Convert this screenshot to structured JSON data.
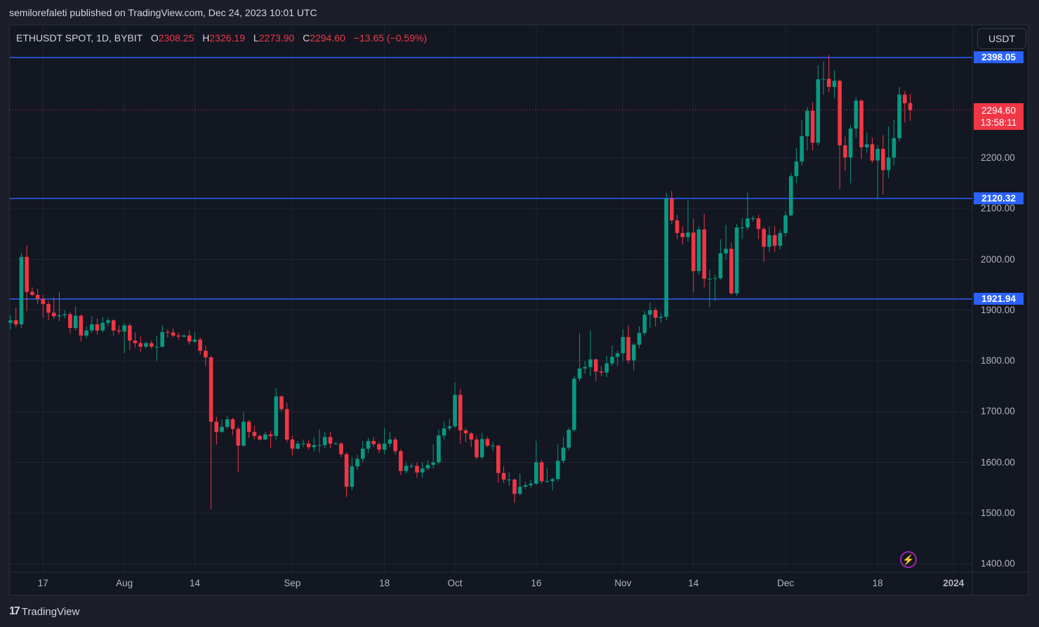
{
  "publish_line": "semilorefaleti published on TradingView.com, Dec 24, 2023 10:01 UTC",
  "legend": {
    "symbol": "ETHUSDT SPOT, 1D, BYBIT",
    "o_label": "O",
    "o": "2308.25",
    "h_label": "H",
    "h": "2326.19",
    "l_label": "L",
    "l": "2273.90",
    "c_label": "C",
    "c": "2294.60",
    "change": "−13.65 (−0.59%)"
  },
  "currency_button": "USDT",
  "levels": [
    {
      "label": "2398.05",
      "value": 2398.05
    },
    {
      "label": "2120.32",
      "value": 2120.32
    },
    {
      "label": "1921.94",
      "value": 1921.94
    }
  ],
  "last_price": {
    "label": "2294.60",
    "value": 2294.6,
    "countdown": "13:58:11"
  },
  "colors": {
    "up": "#089981",
    "down": "#f23645",
    "level": "#2962ff",
    "background": "#131722"
  },
  "brand": "TradingView",
  "icons": {
    "logo": "tradingview-logo-icon",
    "bolt": "lightning-icon"
  },
  "chart_data": {
    "type": "candlestick",
    "title": "ETHUSDT SPOT, 1D, BYBIT",
    "interval": "1D",
    "start_date": "2023-07-11",
    "ylabel": "USDT",
    "ylim": [
      1370,
      2470
    ],
    "grid": true,
    "y_ticks": [
      "1400.00",
      "1500.00",
      "1600.00",
      "1700.00",
      "1800.00",
      "1900.00",
      "2000.00",
      "2100.00",
      "2200.00"
    ],
    "y_tick_values": [
      1400,
      1500,
      1600,
      1700,
      1800,
      1900,
      2000,
      2100,
      2200
    ],
    "x_ticks": [
      {
        "label": "17",
        "date": "2023-07-17"
      },
      {
        "label": "Aug",
        "date": "2023-08-01"
      },
      {
        "label": "14",
        "date": "2023-08-14"
      },
      {
        "label": "Sep",
        "date": "2023-09-01"
      },
      {
        "label": "18",
        "date": "2023-09-18"
      },
      {
        "label": "Oct",
        "date": "2023-10-01"
      },
      {
        "label": "16",
        "date": "2023-10-16"
      },
      {
        "label": "Nov",
        "date": "2023-11-01"
      },
      {
        "label": "14",
        "date": "2023-11-14"
      },
      {
        "label": "Dec",
        "date": "2023-12-01"
      },
      {
        "label": "18",
        "date": "2023-12-18"
      },
      {
        "label": "2024",
        "date": "2024-01-01"
      }
    ],
    "ohlc_fields": [
      "open",
      "high",
      "low",
      "close"
    ],
    "ohlc": [
      [
        1875,
        1890,
        1862,
        1880
      ],
      [
        1880,
        1905,
        1866,
        1872
      ],
      [
        1872,
        2013,
        1864,
        2005
      ],
      [
        2005,
        2028,
        1898,
        1936
      ],
      [
        1936,
        1945,
        1928,
        1930
      ],
      [
        1930,
        1942,
        1912,
        1922
      ],
      [
        1922,
        1930,
        1885,
        1912
      ],
      [
        1912,
        1918,
        1880,
        1895
      ],
      [
        1895,
        1925,
        1882,
        1888
      ],
      [
        1888,
        1935,
        1878,
        1890
      ],
      [
        1890,
        1900,
        1884,
        1892
      ],
      [
        1892,
        1896,
        1855,
        1865
      ],
      [
        1865,
        1907,
        1860,
        1889
      ],
      [
        1889,
        1892,
        1838,
        1850
      ],
      [
        1850,
        1868,
        1845,
        1860
      ],
      [
        1860,
        1888,
        1855,
        1872
      ],
      [
        1872,
        1884,
        1852,
        1860
      ],
      [
        1860,
        1886,
        1856,
        1875
      ],
      [
        1875,
        1885,
        1868,
        1880
      ],
      [
        1880,
        1882,
        1850,
        1860
      ],
      [
        1860,
        1870,
        1852,
        1858
      ],
      [
        1858,
        1875,
        1815,
        1870
      ],
      [
        1870,
        1874,
        1822,
        1840
      ],
      [
        1840,
        1856,
        1826,
        1835
      ],
      [
        1835,
        1848,
        1818,
        1828
      ],
      [
        1828,
        1838,
        1825,
        1835
      ],
      [
        1835,
        1840,
        1824,
        1828
      ],
      [
        1828,
        1850,
        1800,
        1828
      ],
      [
        1828,
        1870,
        1826,
        1857
      ],
      [
        1857,
        1862,
        1846,
        1856
      ],
      [
        1856,
        1864,
        1846,
        1850
      ],
      [
        1850,
        1856,
        1842,
        1848
      ],
      [
        1848,
        1852,
        1846,
        1850
      ],
      [
        1850,
        1860,
        1832,
        1838
      ],
      [
        1838,
        1856,
        1836,
        1842
      ],
      [
        1842,
        1846,
        1812,
        1820
      ],
      [
        1820,
        1830,
        1790,
        1807
      ],
      [
        1807,
        1810,
        1508,
        1680
      ],
      [
        1680,
        1690,
        1635,
        1660
      ],
      [
        1660,
        1684,
        1658,
        1670
      ],
      [
        1670,
        1692,
        1666,
        1685
      ],
      [
        1685,
        1688,
        1654,
        1666
      ],
      [
        1666,
        1670,
        1580,
        1633
      ],
      [
        1633,
        1700,
        1630,
        1680
      ],
      [
        1680,
        1684,
        1648,
        1660
      ],
      [
        1660,
        1672,
        1646,
        1652
      ],
      [
        1652,
        1655,
        1643,
        1645
      ],
      [
        1645,
        1660,
        1644,
        1655
      ],
      [
        1655,
        1662,
        1628,
        1652
      ],
      [
        1652,
        1746,
        1644,
        1730
      ],
      [
        1730,
        1732,
        1700,
        1705
      ],
      [
        1705,
        1718,
        1640,
        1645
      ],
      [
        1645,
        1652,
        1614,
        1627
      ],
      [
        1627,
        1642,
        1625,
        1637
      ],
      [
        1637,
        1645,
        1630,
        1637
      ],
      [
        1637,
        1644,
        1625,
        1630
      ],
      [
        1630,
        1650,
        1622,
        1634
      ],
      [
        1634,
        1665,
        1620,
        1634
      ],
      [
        1634,
        1660,
        1628,
        1650
      ],
      [
        1650,
        1660,
        1628,
        1637
      ],
      [
        1637,
        1640,
        1635,
        1637
      ],
      [
        1637,
        1640,
        1610,
        1616
      ],
      [
        1616,
        1620,
        1532,
        1552
      ],
      [
        1552,
        1610,
        1545,
        1592
      ],
      [
        1592,
        1615,
        1585,
        1607
      ],
      [
        1607,
        1642,
        1600,
        1627
      ],
      [
        1627,
        1648,
        1618,
        1642
      ],
      [
        1642,
        1650,
        1630,
        1636
      ],
      [
        1636,
        1640,
        1618,
        1625
      ],
      [
        1625,
        1668,
        1616,
        1637
      ],
      [
        1637,
        1660,
        1630,
        1645
      ],
      [
        1645,
        1650,
        1615,
        1622
      ],
      [
        1622,
        1626,
        1575,
        1583
      ],
      [
        1583,
        1600,
        1578,
        1593
      ],
      [
        1593,
        1598,
        1589,
        1593
      ],
      [
        1593,
        1600,
        1570,
        1580
      ],
      [
        1580,
        1600,
        1570,
        1588
      ],
      [
        1588,
        1604,
        1584,
        1595
      ],
      [
        1595,
        1635,
        1588,
        1600
      ],
      [
        1600,
        1665,
        1596,
        1653
      ],
      [
        1653,
        1680,
        1645,
        1667
      ],
      [
        1667,
        1685,
        1662,
        1671
      ],
      [
        1671,
        1758,
        1668,
        1733
      ],
      [
        1733,
        1745,
        1637,
        1663
      ],
      [
        1663,
        1668,
        1640,
        1657
      ],
      [
        1657,
        1660,
        1630,
        1645
      ],
      [
        1645,
        1652,
        1606,
        1610
      ],
      [
        1610,
        1658,
        1606,
        1646
      ],
      [
        1646,
        1650,
        1630,
        1633
      ],
      [
        1633,
        1640,
        1622,
        1633
      ],
      [
        1633,
        1635,
        1560,
        1579
      ],
      [
        1579,
        1592,
        1560,
        1566
      ],
      [
        1566,
        1580,
        1554,
        1566
      ],
      [
        1566,
        1568,
        1520,
        1538
      ],
      [
        1538,
        1578,
        1535,
        1552
      ],
      [
        1552,
        1562,
        1548,
        1555
      ],
      [
        1555,
        1565,
        1550,
        1558
      ],
      [
        1558,
        1642,
        1555,
        1600
      ],
      [
        1600,
        1605,
        1558,
        1563
      ],
      [
        1563,
        1590,
        1560,
        1563
      ],
      [
        1563,
        1570,
        1545,
        1567
      ],
      [
        1567,
        1635,
        1562,
        1603
      ],
      [
        1603,
        1650,
        1598,
        1629
      ],
      [
        1629,
        1668,
        1624,
        1664
      ],
      [
        1664,
        1770,
        1660,
        1765
      ],
      [
        1765,
        1854,
        1760,
        1785
      ],
      [
        1785,
        1800,
        1775,
        1788
      ],
      [
        1788,
        1860,
        1770,
        1803
      ],
      [
        1803,
        1805,
        1760,
        1779
      ],
      [
        1779,
        1790,
        1770,
        1777
      ],
      [
        1777,
        1810,
        1768,
        1795
      ],
      [
        1795,
        1830,
        1790,
        1808
      ],
      [
        1808,
        1820,
        1790,
        1815
      ],
      [
        1815,
        1862,
        1800,
        1847
      ],
      [
        1847,
        1870,
        1795,
        1801
      ],
      [
        1801,
        1835,
        1780,
        1832
      ],
      [
        1832,
        1868,
        1825,
        1855
      ],
      [
        1855,
        1898,
        1850,
        1891
      ],
      [
        1891,
        1915,
        1865,
        1900
      ],
      [
        1900,
        1905,
        1868,
        1885
      ],
      [
        1885,
        1895,
        1875,
        1887
      ],
      [
        1887,
        2131,
        1880,
        2120
      ],
      [
        2120,
        2135,
        2070,
        2077
      ],
      [
        2077,
        2088,
        2040,
        2052
      ],
      [
        2052,
        2065,
        2030,
        2044
      ],
      [
        2044,
        2117,
        2035,
        2053
      ],
      [
        2053,
        2080,
        1935,
        1977
      ],
      [
        1977,
        2065,
        1970,
        2059
      ],
      [
        2059,
        2090,
        1945,
        1962
      ],
      [
        1962,
        1980,
        1906,
        1962
      ],
      [
        1962,
        1970,
        1918,
        1963
      ],
      [
        1963,
        2040,
        1960,
        2012
      ],
      [
        2012,
        2068,
        2000,
        2021
      ],
      [
        2021,
        2033,
        1930,
        1933
      ],
      [
        1933,
        2070,
        1928,
        2063
      ],
      [
        2063,
        2082,
        2040,
        2063
      ],
      [
        2063,
        2132,
        2058,
        2081
      ],
      [
        2081,
        2086,
        2075,
        2081
      ],
      [
        2081,
        2088,
        2040,
        2060
      ],
      [
        2060,
        2064,
        1995,
        2025
      ],
      [
        2025,
        2065,
        2015,
        2048
      ],
      [
        2048,
        2066,
        2015,
        2027
      ],
      [
        2027,
        2058,
        2020,
        2052
      ],
      [
        2052,
        2095,
        2045,
        2087
      ],
      [
        2087,
        2170,
        2085,
        2164
      ],
      [
        2164,
        2220,
        2150,
        2193
      ],
      [
        2193,
        2275,
        2185,
        2243
      ],
      [
        2243,
        2300,
        2215,
        2293
      ],
      [
        2293,
        2310,
        2215,
        2230
      ],
      [
        2230,
        2383,
        2225,
        2355
      ],
      [
        2355,
        2390,
        2325,
        2356
      ],
      [
        2356,
        2403,
        2330,
        2340
      ],
      [
        2340,
        2373,
        2318,
        2352
      ],
      [
        2352,
        2355,
        2138,
        2225
      ],
      [
        2225,
        2242,
        2175,
        2201
      ],
      [
        2201,
        2265,
        2150,
        2258
      ],
      [
        2258,
        2320,
        2240,
        2313
      ],
      [
        2313,
        2316,
        2198,
        2221
      ],
      [
        2221,
        2250,
        2210,
        2227
      ],
      [
        2227,
        2240,
        2190,
        2195
      ],
      [
        2195,
        2225,
        2120,
        2218
      ],
      [
        2218,
        2245,
        2128,
        2176
      ],
      [
        2176,
        2262,
        2160,
        2201
      ],
      [
        2201,
        2275,
        2185,
        2239
      ],
      [
        2239,
        2340,
        2232,
        2325
      ],
      [
        2325,
        2332,
        2270,
        2308
      ],
      [
        2308.25,
        2326.19,
        2273.9,
        2294.6
      ]
    ]
  }
}
